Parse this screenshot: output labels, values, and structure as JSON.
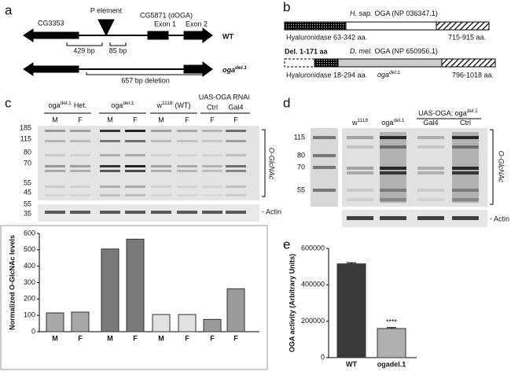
{
  "panel_labels": [
    "a",
    "b",
    "c",
    "d",
    "e"
  ],
  "gene_diagram": {
    "cg3353": "CG3353",
    "p_element": "P element",
    "cg5871": "CG5871 (dOGA)",
    "exon1": "Exon 1",
    "exon2": "Exon 2",
    "span1": "429 bp",
    "span2": "85 bp",
    "deletion": "657 bp deletion",
    "wt": "WT",
    "mutant": {
      "text": "oga",
      "sup": "del.1"
    }
  },
  "protein_diagram": {
    "human": {
      "species": "H. sap.",
      "name": "OGA (NP 036347.1)",
      "domain": "Hyaluronidase 63-342 aa.",
      "end": "715-915 aa."
    },
    "fly": {
      "deletion": "Del. 1-171 aa",
      "species": "D. mel.",
      "name": "OGA (NP 650956.1)",
      "domain": "Hyaluronidase 18-294 aa.",
      "mutant": {
        "text": "oga",
        "sup": "del.1"
      },
      "end": "796-1018 aa."
    }
  },
  "blot_c": {
    "group_headers": [
      {
        "text": "oga",
        "sup": "del.1",
        "after": "Het."
      },
      {
        "text": "oga",
        "sup": "del.1"
      },
      {
        "text": "w",
        "sup": "1118",
        "after": "(WT)"
      }
    ],
    "rnai_header": "UAS-OGA RNAi",
    "rnai_lanes": [
      "Ctrl",
      "Gal4"
    ],
    "lanes": [
      "M",
      "F",
      "M",
      "F",
      "M",
      "F",
      "F",
      "F"
    ],
    "markers": [
      "185",
      "115",
      "80",
      "70",
      "55",
      "45"
    ],
    "actin_markers": [
      "55",
      "35"
    ],
    "glcnac_label": "O-GlcNAc",
    "actin_label": "- Actin"
  },
  "blot_d": {
    "header": {
      "text": "UAS-OGA; oga",
      "sup": "del.1"
    },
    "lanes": [
      {
        "text": "w",
        "sup": "1118"
      },
      {
        "text": "oga",
        "sup": "del.1"
      },
      {
        "text": "Gal4"
      },
      {
        "text": "Ctrl"
      }
    ],
    "markers": [
      "115",
      "80",
      "70",
      "55"
    ],
    "glcnac_label": "O-GlcNAc",
    "actin_label": "- Actin"
  },
  "chart_data": [
    {
      "type": "bar",
      "ylabel": "Normalized O-GlcNAc levels",
      "categories": [
        "M",
        "F",
        "M",
        "F",
        "M",
        "F",
        "F",
        "F"
      ],
      "values": [
        115,
        120,
        505,
        565,
        105,
        105,
        75,
        262
      ],
      "colors": [
        "#a8a8a8",
        "#a8a8a8",
        "#7a7a7a",
        "#7a7a7a",
        "#e2e2e2",
        "#e2e2e2",
        "#9a9a9a",
        "#9a9a9a"
      ],
      "ylim": [
        0,
        600
      ],
      "yticks": [
        0,
        100,
        200,
        300,
        400,
        500,
        600
      ]
    },
    {
      "type": "bar",
      "ylabel": "OGA activity (Arbitrary Units)",
      "categories": [
        "WT",
        "ogadel.1"
      ],
      "values": [
        515000,
        160000
      ],
      "errors": [
        6000,
        5000
      ],
      "colors": [
        "#3a3a3a",
        "#b0b0b0"
      ],
      "ylim": [
        0,
        600000
      ],
      "yticks": [
        0,
        200000,
        400000,
        600000
      ],
      "annotation": "****"
    }
  ]
}
